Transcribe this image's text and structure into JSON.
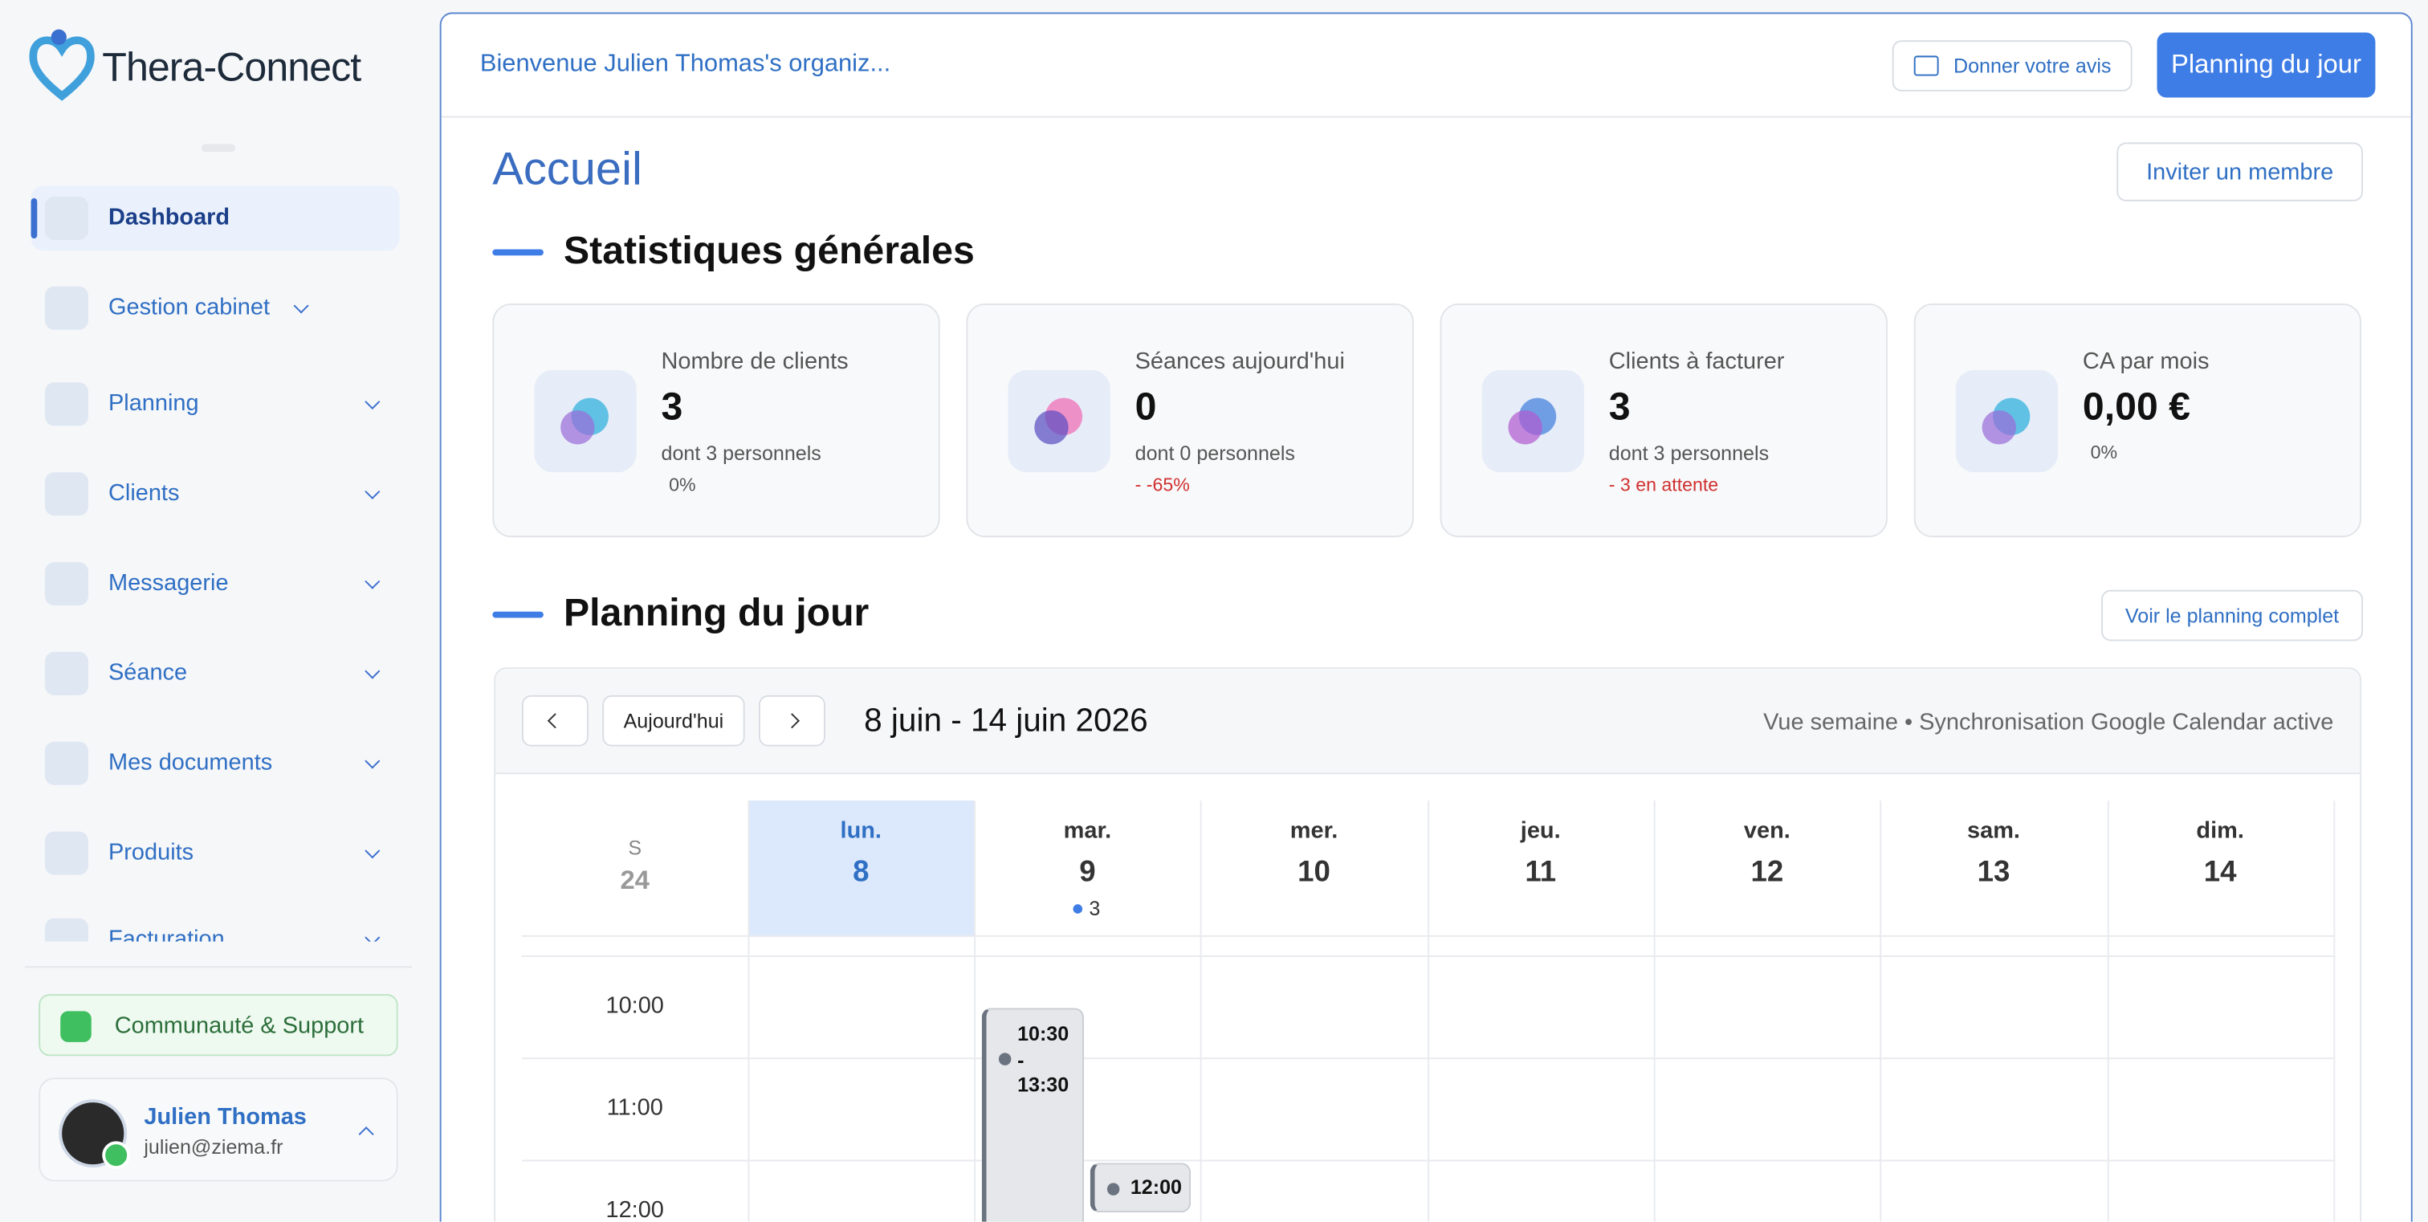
{
  "brand": "Thera-Connect",
  "nav": [
    "Dashboard",
    "Gestion cabinet",
    "Planning",
    "Clients",
    "Messagerie",
    "Séance",
    "Mes documents",
    "Produits",
    "Facturation"
  ],
  "support": "Communauté & Support",
  "user": {
    "name": "Julien Thomas",
    "email": "julien@ziema.fr"
  },
  "header": {
    "welcome": "Bienvenue Julien Thomas's organiz...",
    "feedback": "Donner votre avis",
    "planning": "Planning du jour"
  },
  "page": {
    "title": "Accueil",
    "invite": "Inviter un membre"
  },
  "stats_title": "Statistiques générales",
  "stats": [
    {
      "label": "Nombre de clients",
      "value": "3",
      "sub": "dont 3 personnels",
      "trend": "0%"
    },
    {
      "label": "Séances aujourd'hui",
      "value": "0",
      "sub": "dont 0 personnels",
      "trend": "- -65%"
    },
    {
      "label": "Clients à facturer",
      "value": "3",
      "sub": "dont 3 personnels",
      "trend": "- 3 en attente"
    },
    {
      "label": "CA par mois",
      "value": "0,00 €",
      "trend": "0%"
    }
  ],
  "planning": {
    "title": "Planning du jour",
    "full": "Voir le planning complet",
    "today": "Aujourd'hui",
    "range": "8 juin - 14 juin 2026",
    "info": "Vue semaine • Synchronisation Google Calendar active",
    "week": {
      "label": "S",
      "number": "24"
    },
    "days": [
      {
        "name": "lun.",
        "num": "8"
      },
      {
        "name": "mar.",
        "num": "9",
        "badge": "3"
      },
      {
        "name": "mer.",
        "num": "10"
      },
      {
        "name": "jeu.",
        "num": "11"
      },
      {
        "name": "ven.",
        "num": "12"
      },
      {
        "name": "sam.",
        "num": "13"
      },
      {
        "name": "dim.",
        "num": "14"
      }
    ],
    "times": [
      "10:00",
      "11:00",
      "12:00"
    ],
    "events": [
      {
        "lines": [
          "10:30",
          "-",
          "13:30"
        ]
      },
      {
        "lines": [
          "12:00"
        ]
      }
    ]
  }
}
